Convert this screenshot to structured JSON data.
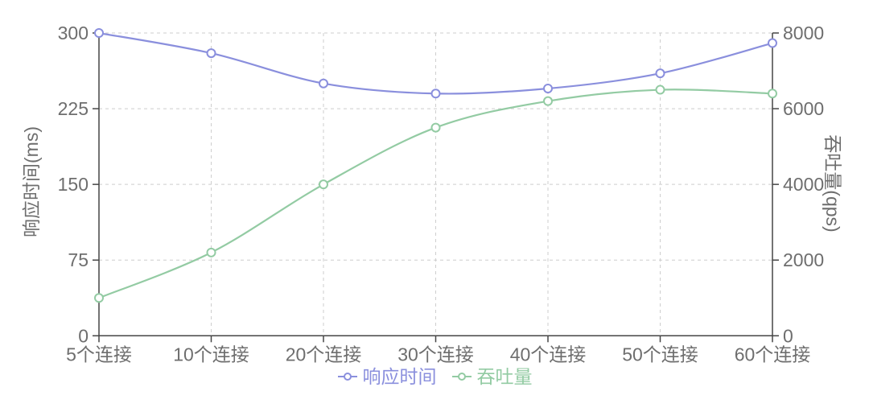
{
  "chart_data": {
    "type": "line",
    "title": "",
    "categories": [
      "5个连接",
      "10个连接",
      "20个连接",
      "30个连接",
      "40个连接",
      "50个连接",
      "60个连接"
    ],
    "series": [
      {
        "name": "响应时间",
        "yAxis": "left",
        "color": "#8a8fdd",
        "smooth": true,
        "marker": "hollow-circle",
        "values": [
          300,
          280,
          250,
          240,
          245,
          260,
          290
        ]
      },
      {
        "name": "吞吐量",
        "yAxis": "right",
        "color": "#93cba3",
        "smooth": true,
        "marker": "hollow-circle",
        "values": [
          1000,
          2200,
          4000,
          5500,
          6200,
          6500,
          6400
        ]
      }
    ],
    "left_axis": {
      "label": "响应时间(ms)",
      "min": 0,
      "max": 300,
      "ticks": [
        0,
        75,
        150,
        225,
        300
      ]
    },
    "right_axis": {
      "label": "吞吐量(qps)",
      "min": 0,
      "max": 8000,
      "ticks": [
        0,
        2000,
        4000,
        6000,
        8000
      ]
    },
    "xlabel": "",
    "grid": true,
    "grid_style": "dashed",
    "legend_position": "bottom"
  },
  "colors": {
    "background": "#ffffff",
    "axis_line": "#454545",
    "grid_line": "#cecece",
    "tick_label": "#6e6e6e",
    "marker_fill": "#ffffff",
    "response_time_series": "#8a8fdd",
    "throughput_series": "#93cba3"
  }
}
